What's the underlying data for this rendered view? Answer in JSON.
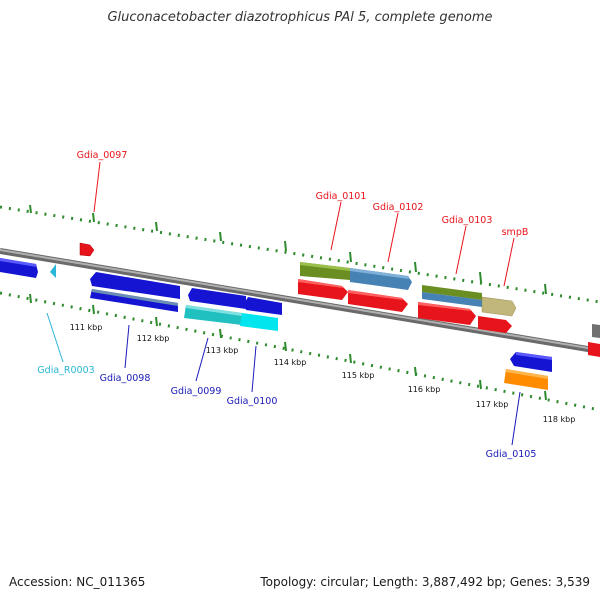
{
  "title": "Gluconacetobacter diazotrophicus PAl 5, complete genome",
  "footer": {
    "accession": "Accession: NC_011365",
    "stats": "Topology: circular; Length: 3,887,492 bp; Genes: 3,539"
  },
  "colors": {
    "backbone": "#8a8a8a",
    "tick": "#2e8b2e",
    "label_red": "#e8141b",
    "label_blue": "#1a1ab8",
    "label_cyan": "#2ab6d6"
  },
  "kbp_labels": [
    "111 kbp",
    "112 kbp",
    "113 kbp",
    "114 kbp",
    "115 kbp",
    "116 kbp",
    "117 kbp",
    "118 kbp"
  ],
  "gene_labels": {
    "top": [
      "Gdia_0097",
      "Gdia_0101",
      "Gdia_0102",
      "Gdia_0103",
      "smpB"
    ],
    "bottom": [
      "Gdia_R0003",
      "Gdia_0098",
      "Gdia_0099",
      "Gdia_0100",
      "Gdia_0105"
    ]
  }
}
